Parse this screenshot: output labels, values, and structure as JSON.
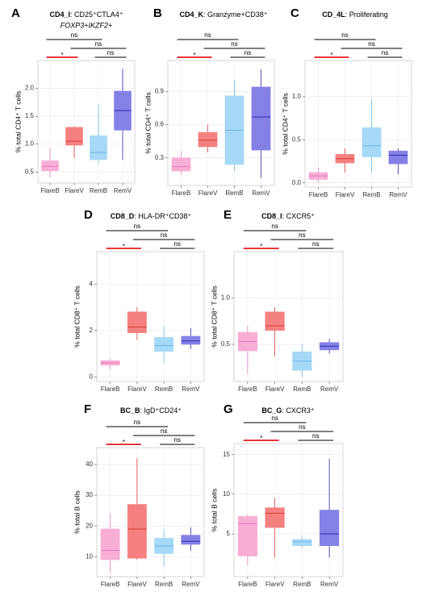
{
  "chart_data": [
    {
      "type": "box",
      "label": "A",
      "title_bold": "CD4_I",
      "title_rest": ": CD25⁺CTLA4⁺",
      "subtitle": "FOXP3+IKZF2+",
      "y_label": "% total CD4⁺ T cells",
      "categories": [
        "FlareB",
        "FlareV",
        "RemB",
        "RemV"
      ],
      "colors": [
        "#f9aed6",
        "#f4817f",
        "#a6d8f7",
        "#8481e6"
      ],
      "edge_colors": [
        "#e07ab8",
        "#d83b3b",
        "#6bb5e6",
        "#2f2aa8"
      ],
      "boxes": [
        {
          "min": 0.4,
          "q1": 0.52,
          "median": 0.6,
          "q3": 0.7,
          "max": 0.93
        },
        {
          "min": 0.75,
          "q1": 0.98,
          "median": 1.05,
          "q3": 1.3,
          "max": 1.32
        },
        {
          "min": 0.65,
          "q1": 0.72,
          "median": 0.85,
          "q3": 1.15,
          "max": 1.72
        },
        {
          "min": 0.72,
          "q1": 1.25,
          "median": 1.6,
          "q3": 1.95,
          "max": 2.35
        }
      ],
      "ylim": [
        0.3,
        2.5
      ],
      "yticks": [
        0.5,
        {
          "value": 1,
          "label": "1.0"
        },
        1.5,
        {
          "value": 2,
          "label": "2.0"
        }
      ],
      "grid": true,
      "comparisons": [
        {
          "groups": [
            "FlareB",
            "RemB"
          ],
          "label": "ns",
          "color": "#000000"
        },
        {
          "groups": [
            "FlareV",
            "RemV"
          ],
          "label": "ns",
          "color": "#000000"
        },
        {
          "groups": [
            "FlareB",
            "FlareV"
          ],
          "label": "*",
          "color": "#e41a1c"
        },
        {
          "groups": [
            "RemB",
            "RemV"
          ],
          "label": "ns",
          "color": "#000000"
        }
      ]
    },
    {
      "type": "box",
      "label": "B",
      "title_bold": "CD4_K",
      "title_rest": ": Granzyme+CD38⁺",
      "y_label": "% total CD4⁺ T cells",
      "categories": [
        "FlareB",
        "FlareV",
        "RemB",
        "RemV"
      ],
      "colors": [
        "#f9aed6",
        "#f4817f",
        "#a6d8f7",
        "#8481e6"
      ],
      "edge_colors": [
        "#e07ab8",
        "#d83b3b",
        "#6bb5e6",
        "#2f2aa8"
      ],
      "boxes": [
        {
          "min": 0.15,
          "q1": 0.18,
          "median": 0.22,
          "q3": 0.3,
          "max": 0.36
        },
        {
          "min": 0.35,
          "q1": 0.4,
          "median": 0.46,
          "q3": 0.53,
          "max": 0.6
        },
        {
          "min": 0.18,
          "q1": 0.24,
          "median": 0.55,
          "q3": 0.86,
          "max": 1.0
        },
        {
          "min": 0.12,
          "q1": 0.37,
          "median": 0.67,
          "q3": 0.94,
          "max": 1.1
        }
      ],
      "ylim": [
        0.05,
        1.18
      ],
      "yticks": [
        0.3,
        0.6,
        0.9
      ],
      "grid": true,
      "comparisons": [
        {
          "groups": [
            "FlareB",
            "RemB"
          ],
          "label": "ns",
          "color": "#000000"
        },
        {
          "groups": [
            "FlareV",
            "RemV"
          ],
          "label": "ns",
          "color": "#000000"
        },
        {
          "groups": [
            "FlareB",
            "FlareV"
          ],
          "label": "*",
          "color": "#e41a1c"
        },
        {
          "groups": [
            "RemB",
            "RemV"
          ],
          "label": "ns",
          "color": "#000000"
        }
      ]
    },
    {
      "type": "box",
      "label": "C",
      "title_bold": "CD_4L",
      "title_rest": ": Proliferating",
      "y_label": "% total CD4⁺ T cells",
      "categories": [
        "FlareB",
        "FlareV",
        "RemB",
        "RemV"
      ],
      "colors": [
        "#f9aed6",
        "#f4817f",
        "#a6d8f7",
        "#8481e6"
      ],
      "edge_colors": [
        "#e07ab8",
        "#d83b3b",
        "#6bb5e6",
        "#2f2aa8"
      ],
      "boxes": [
        {
          "min": 0.0,
          "q1": 0.04,
          "median": 0.08,
          "q3": 0.12,
          "max": 0.18
        },
        {
          "min": 0.12,
          "q1": 0.23,
          "median": 0.28,
          "q3": 0.33,
          "max": 0.4
        },
        {
          "min": 0.12,
          "q1": 0.3,
          "median": 0.43,
          "q3": 0.64,
          "max": 0.97
        },
        {
          "min": 0.1,
          "q1": 0.22,
          "median": 0.32,
          "q3": 0.37,
          "max": 0.4
        }
      ],
      "ylim": [
        -0.05,
        1.42
      ],
      "yticks": [
        {
          "value": 0,
          "label": "0.0"
        },
        0.5,
        {
          "value": 1,
          "label": "1.0"
        }
      ],
      "grid": true,
      "comparisons": [
        {
          "groups": [
            "FlareB",
            "RemB"
          ],
          "label": "ns",
          "color": "#000000"
        },
        {
          "groups": [
            "FlareV",
            "RemV"
          ],
          "label": "ns",
          "color": "#000000"
        },
        {
          "groups": [
            "FlareB",
            "FlareV"
          ],
          "label": "*",
          "color": "#e41a1c"
        },
        {
          "groups": [
            "RemB",
            "RemV"
          ],
          "label": "ns",
          "color": "#000000"
        }
      ]
    },
    {
      "type": "box",
      "label": "D",
      "title_bold": "CD8_D",
      "title_rest": ": HLA-DR⁺CD38⁺",
      "y_label": "% total CD8⁺ T cells",
      "categories": [
        "FlareB",
        "FlareV",
        "RemB",
        "RemV"
      ],
      "colors": [
        "#f9aed6",
        "#f4817f",
        "#a6d8f7",
        "#8481e6"
      ],
      "edge_colors": [
        "#e07ab8",
        "#d83b3b",
        "#6bb5e6",
        "#2f2aa8"
      ],
      "boxes": [
        {
          "min": 0.3,
          "q1": 0.5,
          "median": 0.6,
          "q3": 0.7,
          "max": 0.8
        },
        {
          "min": 1.6,
          "q1": 1.9,
          "median": 2.15,
          "q3": 2.8,
          "max": 3.0
        },
        {
          "min": 0.6,
          "q1": 1.1,
          "median": 1.35,
          "q3": 1.7,
          "max": 2.2
        },
        {
          "min": 1.2,
          "q1": 1.4,
          "median": 1.55,
          "q3": 1.75,
          "max": 2.1
        }
      ],
      "ylim": [
        -0.2,
        5.4
      ],
      "yticks": [
        0,
        2,
        4
      ],
      "grid": true,
      "comparisons": [
        {
          "groups": [
            "FlareB",
            "RemB"
          ],
          "label": "ns",
          "color": "#000000"
        },
        {
          "groups": [
            "FlareV",
            "RemV"
          ],
          "label": "ns",
          "color": "#000000"
        },
        {
          "groups": [
            "FlareB",
            "FlareV"
          ],
          "label": "*",
          "color": "#e41a1c"
        },
        {
          "groups": [
            "RemB",
            "RemV"
          ],
          "label": "ns",
          "color": "#000000"
        }
      ]
    },
    {
      "type": "box",
      "label": "E",
      "title_bold": "CD8_I",
      "title_rest": ": CXCR5⁺",
      "y_label": "% total CD8⁺ T cells",
      "categories": [
        "FlareB",
        "FlareV",
        "RemB",
        "RemV"
      ],
      "colors": [
        "#f9aed6",
        "#f4817f",
        "#a6d8f7",
        "#8481e6"
      ],
      "edge_colors": [
        "#e07ab8",
        "#d83b3b",
        "#6bb5e6",
        "#2f2aa8"
      ],
      "boxes": [
        {
          "min": 0.18,
          "q1": 0.43,
          "median": 0.53,
          "q3": 0.63,
          "max": 0.7
        },
        {
          "min": 0.37,
          "q1": 0.65,
          "median": 0.7,
          "q3": 0.85,
          "max": 0.9
        },
        {
          "min": 0.15,
          "q1": 0.22,
          "median": 0.32,
          "q3": 0.42,
          "max": 0.5
        },
        {
          "min": 0.4,
          "q1": 0.44,
          "median": 0.48,
          "q3": 0.52,
          "max": 0.56
        }
      ],
      "ylim": [
        0.1,
        1.5
      ],
      "yticks": [
        0.5,
        {
          "value": 1,
          "label": "1.0"
        }
      ],
      "grid": true,
      "comparisons": [
        {
          "groups": [
            "FlareB",
            "RemB"
          ],
          "label": "ns",
          "color": "#000000"
        },
        {
          "groups": [
            "FlareV",
            "RemV"
          ],
          "label": "ns",
          "color": "#000000"
        },
        {
          "groups": [
            "FlareB",
            "FlareV"
          ],
          "label": "*",
          "color": "#e41a1c"
        },
        {
          "groups": [
            "RemB",
            "RemV"
          ],
          "label": "ns",
          "color": "#000000"
        }
      ]
    },
    {
      "type": "box",
      "label": "F",
      "title_bold": "BC_B",
      "title_rest": ": IgD⁺CD24⁺",
      "y_label": "% total B cells",
      "categories": [
        "FlareB",
        "FlareV",
        "RemB",
        "RemV"
      ],
      "colors": [
        "#f9aed6",
        "#f4817f",
        "#a6d8f7",
        "#8481e6"
      ],
      "edge_colors": [
        "#e07ab8",
        "#d83b3b",
        "#6bb5e6",
        "#2f2aa8"
      ],
      "boxes": [
        {
          "min": 5,
          "q1": 9,
          "median": 12,
          "q3": 19,
          "max": 24
        },
        {
          "min": 9,
          "q1": 9.5,
          "median": 19,
          "q3": 27,
          "max": 42
        },
        {
          "min": 7,
          "q1": 11,
          "median": 13.5,
          "q3": 16,
          "max": 19
        },
        {
          "min": 12,
          "q1": 14,
          "median": 15,
          "q3": 17,
          "max": 19.5
        }
      ],
      "ylim": [
        3.5,
        45.5
      ],
      "yticks": [
        10,
        20,
        30,
        40
      ],
      "grid": true,
      "comparisons": [
        {
          "groups": [
            "FlareB",
            "RemB"
          ],
          "label": "ns",
          "color": "#000000"
        },
        {
          "groups": [
            "FlareV",
            "RemV"
          ],
          "label": "ns",
          "color": "#000000"
        },
        {
          "groups": [
            "FlareB",
            "FlareV"
          ],
          "label": "*",
          "color": "#e41a1c"
        },
        {
          "groups": [
            "RemB",
            "RemV"
          ],
          "label": "ns",
          "color": "#000000"
        }
      ]
    },
    {
      "type": "box",
      "label": "G",
      "title_bold": "BC_G",
      "title_rest": ": CXCR3⁺",
      "y_label": "% total B cells",
      "categories": [
        "FlareB",
        "FlareV",
        "RemB",
        "RemV"
      ],
      "colors": [
        "#f9aed6",
        "#f4817f",
        "#a6d8f7",
        "#8481e6"
      ],
      "edge_colors": [
        "#e07ab8",
        "#d83b3b",
        "#6bb5e6",
        "#2f2aa8"
      ],
      "boxes": [
        {
          "min": 1,
          "q1": 2.2,
          "median": 6.3,
          "q3": 7.2,
          "max": 7.5
        },
        {
          "min": 2,
          "q1": 5.8,
          "median": 7.6,
          "q3": 8.3,
          "max": 9.5
        },
        {
          "min": 3.2,
          "q1": 3.5,
          "median": 4.0,
          "q3": 4.3,
          "max": 4.8
        },
        {
          "min": 2,
          "q1": 3.5,
          "median": 5,
          "q3": 8,
          "max": 14.5
        }
      ],
      "ylim": [
        -0.4,
        16.4
      ],
      "yticks": [
        5,
        10,
        15
      ],
      "grid": true,
      "comparisons": [
        {
          "groups": [
            "FlareB",
            "RemB"
          ],
          "label": "ns",
          "color": "#000000"
        },
        {
          "groups": [
            "FlareV",
            "RemV"
          ],
          "label": "ns",
          "color": "#000000"
        },
        {
          "groups": [
            "FlareB",
            "FlareV"
          ],
          "label": "*",
          "color": "#e41a1c"
        },
        {
          "groups": [
            "RemB",
            "RemV"
          ],
          "label": "ns",
          "color": "#000000"
        }
      ]
    }
  ]
}
